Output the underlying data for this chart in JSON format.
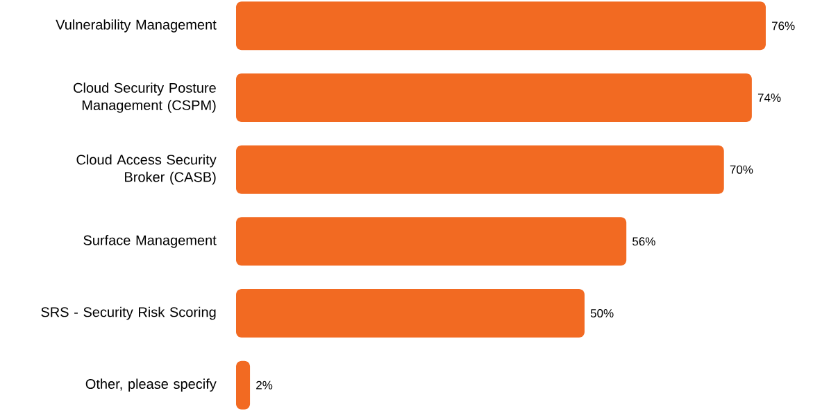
{
  "chart_data": {
    "type": "bar",
    "orientation": "horizontal",
    "categories": [
      "Vulnerability Management",
      "Cloud Security Posture Management (CSPM)",
      "Cloud Access Security Broker (CASB)",
      "Surface Management",
      "SRS - Security Risk Scoring",
      "Other, please specify"
    ],
    "values": [
      76,
      74,
      70,
      56,
      50,
      2
    ],
    "value_labels": [
      "76%",
      "74%",
      "70%",
      "56%",
      "50%",
      "2%"
    ],
    "color": "#f26a22",
    "tick_labels": "y"
  }
}
